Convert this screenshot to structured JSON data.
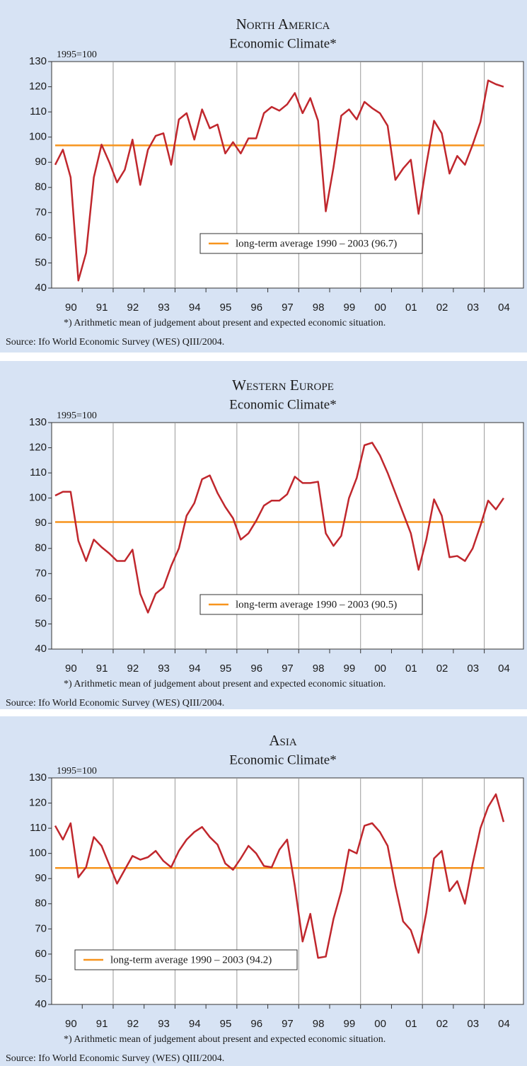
{
  "chart_data": [
    {
      "type": "line",
      "title": "North America",
      "subtitle": "Economic Climate*",
      "y_label": "1995=100",
      "categories": [
        null,
        "90",
        null,
        null,
        null,
        "91",
        null,
        null,
        null,
        "92",
        null,
        null,
        null,
        "93",
        null,
        null,
        null,
        "94",
        null,
        null,
        null,
        "95",
        null,
        null,
        null,
        "96",
        null,
        null,
        null,
        "97",
        null,
        null,
        null,
        "98",
        null,
        null,
        null,
        "99",
        null,
        null,
        null,
        "00",
        null,
        null,
        null,
        "01",
        null,
        null,
        null,
        "02",
        null,
        null,
        null,
        "03",
        null,
        null,
        null,
        "04",
        null
      ],
      "series": [
        {
          "color": "#c0272d",
          "values": [
            89,
            95,
            84,
            43,
            54,
            84,
            97,
            90,
            82,
            87,
            99,
            81,
            95,
            100.5,
            101.5,
            89,
            107,
            109.5,
            99,
            111,
            103.5,
            105,
            93.5,
            98,
            93.5,
            99.5,
            99.5,
            109.5,
            112,
            110.5,
            113,
            117.5,
            109.5,
            115.5,
            106.5,
            70.5,
            88,
            108.5,
            111,
            107,
            114,
            111.5,
            109.5,
            104.5,
            83,
            87.5,
            91,
            69.5,
            89,
            106.5,
            101.5,
            85.5,
            92.5,
            89,
            97,
            106,
            122.5,
            121,
            120
          ]
        }
      ],
      "reference_line": {
        "value": 96.7,
        "label": "long-term average 1990 – 2003 (96.7)",
        "color": "#f7941d"
      },
      "legend_position": "center",
      "ylim": [
        40,
        130
      ],
      "yticks": [
        40,
        50,
        60,
        70,
        80,
        90,
        100,
        110,
        120,
        130
      ],
      "grid": true,
      "footnote": "*) Arithmetic mean of judgement about present and expected economic situation.",
      "source": "Source: Ifo World Economic Survey (WES) QIII/2004."
    },
    {
      "type": "line",
      "title": "Western Europe",
      "subtitle": "Economic Climate*",
      "y_label": "1995=100",
      "categories": [
        null,
        "90",
        null,
        null,
        null,
        "91",
        null,
        null,
        null,
        "92",
        null,
        null,
        null,
        "93",
        null,
        null,
        null,
        "94",
        null,
        null,
        null,
        "95",
        null,
        null,
        null,
        "96",
        null,
        null,
        null,
        "97",
        null,
        null,
        null,
        "98",
        null,
        null,
        null,
        "99",
        null,
        null,
        null,
        "00",
        null,
        null,
        null,
        "01",
        null,
        null,
        null,
        "02",
        null,
        null,
        null,
        "03",
        null,
        null,
        null,
        "04",
        null
      ],
      "series": [
        {
          "color": "#c0272d",
          "values": [
            101,
            102.5,
            102.5,
            83,
            75,
            83.5,
            80.5,
            78,
            75,
            75,
            79.5,
            62,
            54.5,
            62,
            64.5,
            73,
            80,
            93,
            98,
            107.5,
            109,
            102,
            96.5,
            92,
            83.5,
            86,
            91,
            97,
            99,
            99,
            101.5,
            108.5,
            106,
            106,
            106.5,
            86,
            81,
            85,
            100,
            108,
            121,
            122,
            117,
            110,
            102,
            94,
            86,
            71.5,
            83.5,
            99.5,
            93,
            76.5,
            77,
            75,
            80,
            89,
            99,
            95.5,
            100
          ]
        }
      ],
      "reference_line": {
        "value": 90.5,
        "label": "long-term average 1990 – 2003 (90.5)",
        "color": "#f7941d"
      },
      "legend_position": "center",
      "ylim": [
        40,
        130
      ],
      "yticks": [
        40,
        50,
        60,
        70,
        80,
        90,
        100,
        110,
        120,
        130
      ],
      "grid": true,
      "footnote": "*) Arithmetic mean of judgement about present and expected economic situation.",
      "source": "Source: Ifo World Economic Survey (WES) QIII/2004."
    },
    {
      "type": "line",
      "title": "Asia",
      "subtitle": "Economic Climate*",
      "y_label": "1995=100",
      "categories": [
        null,
        "90",
        null,
        null,
        null,
        "91",
        null,
        null,
        null,
        "92",
        null,
        null,
        null,
        "93",
        null,
        null,
        null,
        "94",
        null,
        null,
        null,
        "95",
        null,
        null,
        null,
        "96",
        null,
        null,
        null,
        "97",
        null,
        null,
        null,
        "98",
        null,
        null,
        null,
        "99",
        null,
        null,
        null,
        "00",
        null,
        null,
        null,
        "01",
        null,
        null,
        null,
        "02",
        null,
        null,
        null,
        "03",
        null,
        null,
        null,
        "04",
        null
      ],
      "series": [
        {
          "color": "#c0272d",
          "values": [
            111,
            105.5,
            112,
            90.5,
            94.5,
            106.5,
            103,
            95.5,
            88,
            93.5,
            99,
            97.5,
            98.5,
            101,
            97,
            94.5,
            101,
            105.5,
            108.5,
            110.5,
            106.5,
            103.5,
            96,
            93.5,
            98,
            103,
            100,
            95,
            94.5,
            101.5,
            105.5,
            87,
            65,
            76,
            58.5,
            59,
            74,
            85,
            101.5,
            100,
            111,
            112,
            108.5,
            103,
            87,
            73,
            69.5,
            60.5,
            76.5,
            98,
            101,
            85,
            89,
            80,
            96,
            110,
            118.5,
            123.5,
            112.5
          ]
        }
      ],
      "reference_line": {
        "value": 94.2,
        "label": "long-term average 1990 – 2003 (94.2)",
        "color": "#f7941d"
      },
      "legend_position": "lower left",
      "ylim": [
        40,
        130
      ],
      "yticks": [
        40,
        50,
        60,
        70,
        80,
        90,
        100,
        110,
        120,
        130
      ],
      "grid": true,
      "footnote": "*) Arithmetic mean of judgement about present and expected economic situation.",
      "source": "Source: Ifo World Economic Survey (WES) QIII/2004."
    }
  ]
}
